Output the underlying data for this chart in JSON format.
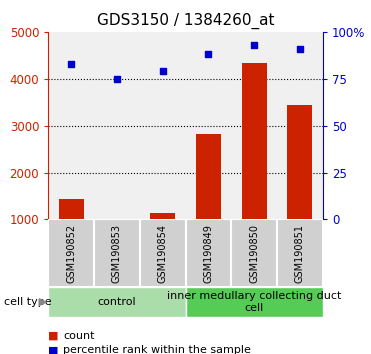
{
  "title": "GDS3150 / 1384260_at",
  "samples": [
    "GSM190852",
    "GSM190853",
    "GSM190854",
    "GSM190849",
    "GSM190850",
    "GSM190851"
  ],
  "counts": [
    1430,
    1020,
    1130,
    2820,
    4340,
    3450
  ],
  "percentiles": [
    83,
    75,
    79,
    88,
    93,
    91
  ],
  "ylim_left": [
    1000,
    5000
  ],
  "ylim_right": [
    0,
    100
  ],
  "yticks_left": [
    1000,
    2000,
    3000,
    4000,
    5000
  ],
  "yticks_left_labels": [
    "1000",
    "2000",
    "3000",
    "4000",
    "5000"
  ],
  "yticks_right": [
    0,
    25,
    50,
    75,
    100
  ],
  "yticks_right_labels": [
    "0",
    "25",
    "50",
    "75",
    "100%"
  ],
  "bar_color": "#cc2200",
  "scatter_color": "#0000cc",
  "groups": [
    {
      "label": "control",
      "start": 0,
      "end": 3,
      "color": "#aaddaa"
    },
    {
      "label": "inner medullary collecting duct\ncell",
      "start": 3,
      "end": 6,
      "color": "#55cc55"
    }
  ],
  "cell_type_label": "cell type",
  "legend_items": [
    {
      "label": "count",
      "color": "#cc2200"
    },
    {
      "label": "percentile rank within the sample",
      "color": "#0000cc"
    }
  ],
  "sample_box_color": "#d0d0d0",
  "plot_bg_color": "#ffffff",
  "title_fontsize": 11,
  "tick_fontsize": 8.5,
  "sample_fontsize": 7,
  "group_fontsize": 8,
  "legend_fontsize": 8
}
